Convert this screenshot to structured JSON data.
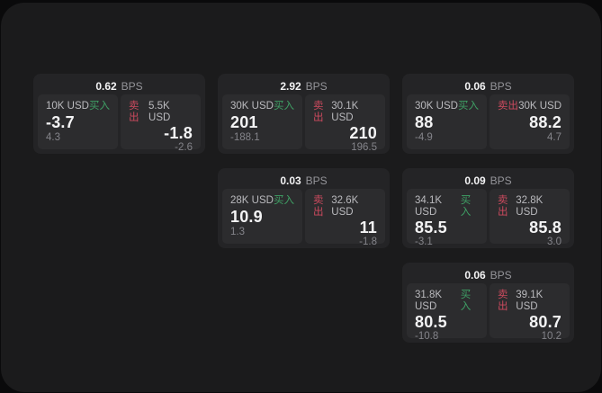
{
  "board": {
    "unit_label": "BPS",
    "buy_label": "买入",
    "sell_label": "卖出",
    "colors": {
      "buy_green": "#3fa065",
      "sell_red": "#cc4a5e",
      "panel_bg": "#1b1b1c",
      "card_bg": "#242426",
      "tile_bg": "#2c2c2e"
    }
  },
  "cards": [
    {
      "spread": "0.62",
      "unit": "BPS",
      "buy": {
        "notional": "10K USD",
        "side": "买入",
        "price": "-3.7",
        "skew": "4.3"
      },
      "sell": {
        "side": "卖出",
        "notional": "5.5K USD",
        "price": "-1.8",
        "skew": "-2.6"
      }
    },
    {
      "spread": "2.92",
      "unit": "BPS",
      "buy": {
        "notional": "30K USD",
        "side": "买入",
        "price": "201",
        "skew": "-188.1"
      },
      "sell": {
        "side": "卖出",
        "notional": "30.1K USD",
        "price": "210",
        "skew": "196.5"
      }
    },
    {
      "spread": "0.06",
      "unit": "BPS",
      "buy": {
        "notional": "30K USD",
        "side": "买入",
        "price": "88",
        "skew": "-4.9"
      },
      "sell": {
        "side": "卖出",
        "notional": "30K USD",
        "price": "88.2",
        "skew": "4.7"
      }
    },
    {
      "spread": "0.03",
      "unit": "BPS",
      "buy": {
        "notional": "28K USD",
        "side": "买入",
        "price": "10.9",
        "skew": "1.3"
      },
      "sell": {
        "side": "卖出",
        "notional": "32.6K USD",
        "price": "11",
        "skew": "-1.8"
      }
    },
    {
      "spread": "0.09",
      "unit": "BPS",
      "buy": {
        "notional": "34.1K USD",
        "side": "买入",
        "price": "85.5",
        "skew": "-3.1"
      },
      "sell": {
        "side": "卖出",
        "notional": "32.8K USD",
        "price": "85.8",
        "skew": "3.0"
      }
    },
    {
      "spread": "0.06",
      "unit": "BPS",
      "buy": {
        "notional": "31.8K USD",
        "side": "买入",
        "price": "80.5",
        "skew": "-10.8"
      },
      "sell": {
        "side": "卖出",
        "notional": "39.1K USD",
        "price": "80.7",
        "skew": "10.2"
      }
    }
  ]
}
